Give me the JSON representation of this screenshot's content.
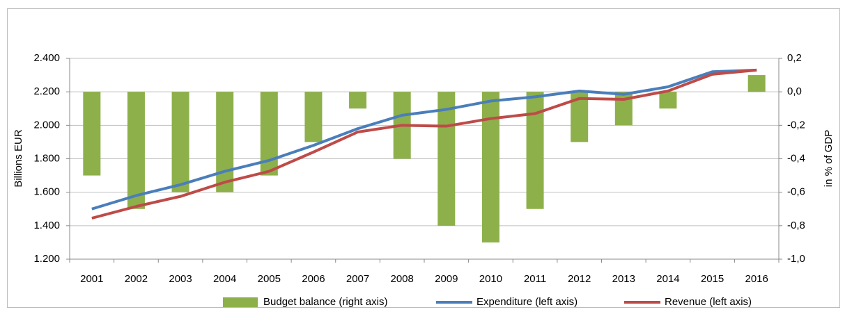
{
  "chart_data": {
    "type": "bar-line",
    "categories": [
      "2001",
      "2002",
      "2003",
      "2004",
      "2005",
      "2006",
      "2007",
      "2008",
      "2009",
      "2010",
      "2011",
      "2012",
      "2013",
      "2014",
      "2015",
      "2016"
    ],
    "ylabel": "Billions EUR",
    "y2label": "in % of GDP",
    "ylim": [
      1200,
      2400
    ],
    "yticks": [
      {
        "value": 1200,
        "label": "1.200"
      },
      {
        "value": 1400,
        "label": "1.400"
      },
      {
        "value": 1600,
        "label": "1.600"
      },
      {
        "value": 1800,
        "label": "1.800"
      },
      {
        "value": 2000,
        "label": "2.000"
      },
      {
        "value": 2200,
        "label": "2.200"
      },
      {
        "value": 2400,
        "label": "2.400"
      }
    ],
    "y2lim": [
      -1.0,
      0.2
    ],
    "y2ticks": [
      {
        "value": -1.0,
        "label": "-1,0"
      },
      {
        "value": -0.8,
        "label": "-0,8"
      },
      {
        "value": -0.6,
        "label": "-0,6"
      },
      {
        "value": -0.4,
        "label": "-0,4"
      },
      {
        "value": -0.2,
        "label": "-0,2"
      },
      {
        "value": 0.0,
        "label": "0,0"
      },
      {
        "value": 0.2,
        "label": "0,2"
      }
    ],
    "grid": true,
    "legend": "bottom",
    "series": [
      {
        "name": "Budget balance (right axis)",
        "type": "bar",
        "axis": "y2",
        "color": "#8db04a",
        "values": [
          -0.5,
          -0.7,
          -0.6,
          -0.6,
          -0.5,
          -0.3,
          -0.1,
          -0.4,
          -0.8,
          -0.9,
          -0.7,
          -0.3,
          -0.2,
          -0.1,
          0.0,
          0.1
        ]
      },
      {
        "name": "Expenditure (left axis)",
        "type": "line",
        "axis": "y",
        "color": "#4a7ebb",
        "values": [
          1500,
          1580,
          1645,
          1725,
          1790,
          1880,
          1980,
          2060,
          2095,
          2145,
          2170,
          2205,
          2185,
          2230,
          2320,
          2330
        ]
      },
      {
        "name": "Revenue (left axis)",
        "type": "line",
        "axis": "y",
        "color": "#be4b48",
        "values": [
          1445,
          1515,
          1575,
          1660,
          1725,
          1840,
          1960,
          2000,
          1995,
          2040,
          2070,
          2160,
          2155,
          2205,
          2305,
          2330
        ]
      }
    ]
  }
}
